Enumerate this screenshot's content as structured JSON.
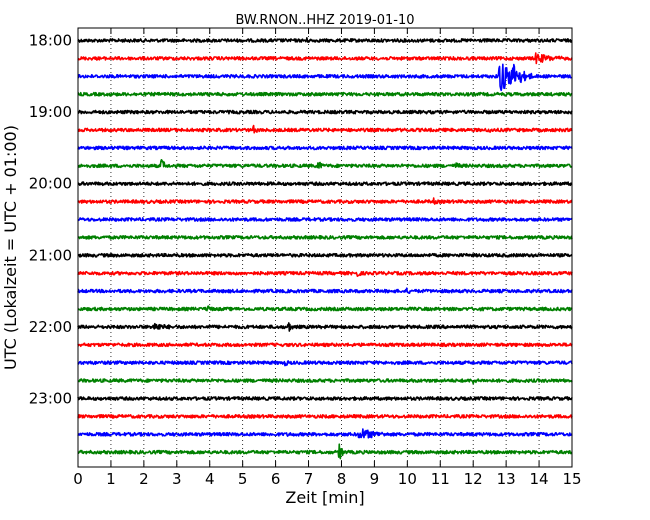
{
  "chart_data": {
    "type": "line",
    "title": "BW.RNON..HHZ 2019-01-10",
    "xlabel": "Zeit  [min]",
    "ylabel": "UTC (Lokalzeit = UTC + 01:00)",
    "xlim": [
      0,
      15
    ],
    "x_ticks": [
      "0",
      "1",
      "2",
      "3",
      "4",
      "5",
      "6",
      "7",
      "8",
      "9",
      "10",
      "11",
      "12",
      "13",
      "14",
      "15"
    ],
    "y_tick_labels": [
      "18:00",
      "19:00",
      "20:00",
      "21:00",
      "22:00",
      "23:00"
    ],
    "grid": "vertical dotted",
    "trace_colors": [
      "#000000",
      "#ff0000",
      "#0000ff",
      "#008000"
    ],
    "traces": [
      {
        "start": "18:00",
        "events": [
          {
            "t": 6.9,
            "amp": 0.5
          }
        ]
      },
      {
        "start": "18:15",
        "events": [
          {
            "t": 13.9,
            "amp": 0.6,
            "dur": 0.8
          }
        ]
      },
      {
        "start": "18:30",
        "events": [
          {
            "t": 12.8,
            "amp": 2.4,
            "dur": 0.9
          },
          {
            "t": 13.2,
            "amp": 2.0,
            "dur": 0.6
          }
        ]
      },
      {
        "start": "18:45",
        "events": []
      },
      {
        "start": "19:00",
        "events": []
      },
      {
        "start": "19:15",
        "events": [
          {
            "t": 5.35,
            "amp": 0.7
          },
          {
            "t": 12.5,
            "amp": 0.3
          }
        ]
      },
      {
        "start": "19:30",
        "events": [
          {
            "t": 0.9,
            "amp": 0.3
          }
        ]
      },
      {
        "start": "19:45",
        "events": [
          {
            "t": 2.55,
            "amp": 1.3
          },
          {
            "t": 7.3,
            "amp": 0.8
          },
          {
            "t": 11.5,
            "amp": 0.4
          }
        ]
      },
      {
        "start": "20:00",
        "events": []
      },
      {
        "start": "20:15",
        "events": [
          {
            "t": 10.8,
            "amp": 0.3
          }
        ]
      },
      {
        "start": "20:30",
        "events": []
      },
      {
        "start": "20:45",
        "events": []
      },
      {
        "start": "21:00",
        "events": []
      },
      {
        "start": "21:15",
        "events": [
          {
            "t": 8.5,
            "amp": 0.4
          }
        ]
      },
      {
        "start": "21:30",
        "events": [
          {
            "t": 10.0,
            "amp": 0.3
          }
        ]
      },
      {
        "start": "21:45",
        "events": [
          {
            "t": 3.95,
            "amp": 0.5
          }
        ]
      },
      {
        "start": "22:00",
        "events": [
          {
            "t": 2.3,
            "amp": 0.5,
            "dur": 0.5
          },
          {
            "t": 6.4,
            "amp": 0.7
          }
        ]
      },
      {
        "start": "22:15",
        "events": []
      },
      {
        "start": "22:30",
        "events": [
          {
            "t": 6.3,
            "amp": 0.3
          }
        ]
      },
      {
        "start": "22:45",
        "events": [
          {
            "t": 12.0,
            "amp": 0.3
          }
        ]
      },
      {
        "start": "23:00",
        "events": []
      },
      {
        "start": "23:15",
        "events": []
      },
      {
        "start": "23:30",
        "events": [
          {
            "t": 8.55,
            "amp": 0.8,
            "dur": 0.8
          },
          {
            "t": 6.4,
            "amp": 0.2
          }
        ]
      },
      {
        "start": "23:45",
        "events": [
          {
            "t": 7.95,
            "amp": 1.5
          }
        ]
      }
    ]
  }
}
